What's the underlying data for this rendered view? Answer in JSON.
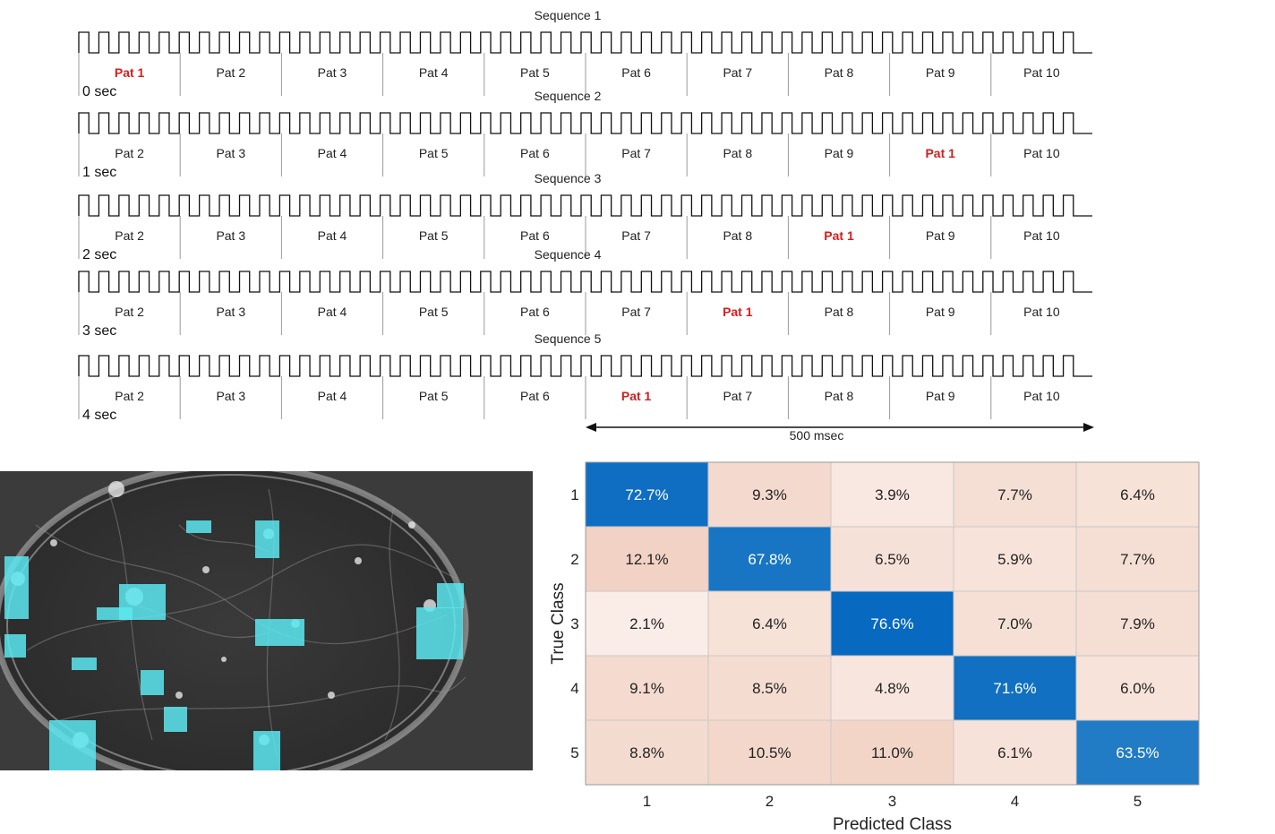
{
  "sequences": [
    {
      "title": "Sequence 1",
      "time": "0 sec",
      "patterns": [
        "Pat 1",
        "Pat 2",
        "Pat 3",
        "Pat 4",
        "Pat 5",
        "Pat 6",
        "Pat 7",
        "Pat 8",
        "Pat 9",
        "Pat 10"
      ],
      "highlight": "Pat 1"
    },
    {
      "title": "Sequence 2",
      "time": "1 sec",
      "patterns": [
        "Pat 2",
        "Pat 3",
        "Pat 4",
        "Pat 5",
        "Pat 6",
        "Pat 7",
        "Pat 8",
        "Pat 9",
        "Pat 1",
        "Pat 10"
      ],
      "highlight": "Pat 1"
    },
    {
      "title": "Sequence 3",
      "time": "2 sec",
      "patterns": [
        "Pat 2",
        "Pat 3",
        "Pat 4",
        "Pat 5",
        "Pat 6",
        "Pat 7",
        "Pat 8",
        "Pat 1",
        "Pat 9",
        "Pat 10"
      ],
      "highlight": "Pat 1"
    },
    {
      "title": "Sequence 4",
      "time": "3 sec",
      "patterns": [
        "Pat 2",
        "Pat 3",
        "Pat 4",
        "Pat 5",
        "Pat 6",
        "Pat 7",
        "Pat 1",
        "Pat 8",
        "Pat 9",
        "Pat 10"
      ],
      "highlight": "Pat 1"
    },
    {
      "title": "Sequence 5",
      "time": "4 sec",
      "patterns": [
        "Pat 2",
        "Pat 3",
        "Pat 4",
        "Pat 5",
        "Pat 6",
        "Pat 1",
        "Pat 7",
        "Pat 8",
        "Pat 9",
        "Pat 10"
      ],
      "highlight": "Pat 1"
    }
  ],
  "duration_label": "500 msec",
  "colors": {
    "highlight": "#d21f1f",
    "matrix_high": "#0072bd",
    "matrix_low": "#fbeee8",
    "overlay": "#5ce8f0"
  },
  "chart_data": {
    "type": "heatmap",
    "xlabel": "Predicted Class",
    "ylabel": "True Class",
    "x_ticks": [
      "1",
      "2",
      "3",
      "4",
      "5"
    ],
    "y_ticks": [
      "1",
      "2",
      "3",
      "4",
      "5"
    ],
    "values": [
      [
        72.7,
        9.3,
        3.9,
        7.7,
        6.4
      ],
      [
        12.1,
        67.8,
        6.5,
        5.9,
        7.7
      ],
      [
        2.1,
        6.4,
        76.6,
        7.0,
        7.9
      ],
      [
        9.1,
        8.5,
        4.8,
        71.6,
        6.0
      ],
      [
        8.8,
        10.5,
        11.0,
        6.1,
        63.5
      ]
    ],
    "labels": [
      [
        "72.7%",
        "9.3%",
        "3.9%",
        "7.7%",
        "6.4%"
      ],
      [
        "12.1%",
        "67.8%",
        "6.5%",
        "5.9%",
        "7.7%"
      ],
      [
        "2.1%",
        "6.4%",
        "76.6%",
        "7.0%",
        "7.9%"
      ],
      [
        "9.1%",
        "8.5%",
        "4.8%",
        "71.6%",
        "6.0%"
      ],
      [
        "8.8%",
        "10.5%",
        "11.0%",
        "6.1%",
        "63.5%"
      ]
    ]
  }
}
